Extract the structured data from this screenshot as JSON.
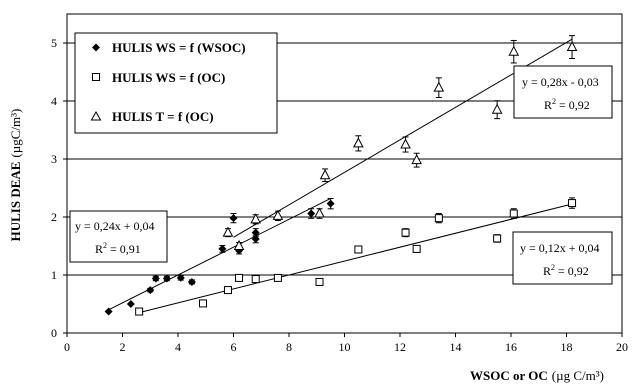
{
  "chart_data": {
    "type": "scatter",
    "xlabel": "WSOC or OC",
    "xunit": "(µg C/m³)",
    "ylabel": "HULIS DEAE",
    "yunit": "(µgC/m³)",
    "xlim": [
      0,
      20
    ],
    "ylim": [
      0,
      5.5
    ],
    "xticks": [
      0,
      2,
      4,
      6,
      8,
      10,
      12,
      14,
      16,
      18,
      20
    ],
    "yticks": [
      0,
      1,
      2,
      3,
      4,
      5
    ],
    "grid": "horizontal",
    "legend_position": "top-left",
    "series": [
      {
        "name": "HULIS WS = f (WSOC)",
        "marker": "filled-diamond",
        "color": "#000000",
        "points": [
          {
            "x": 1.5,
            "y": 0.37
          },
          {
            "x": 2.3,
            "y": 0.5
          },
          {
            "x": 3.0,
            "y": 0.74
          },
          {
            "x": 3.2,
            "y": 0.94
          },
          {
            "x": 3.6,
            "y": 0.94
          },
          {
            "x": 4.1,
            "y": 0.95
          },
          {
            "x": 4.5,
            "y": 0.88
          },
          {
            "x": 5.6,
            "y": 1.45
          },
          {
            "x": 6.0,
            "y": 1.98
          },
          {
            "x": 6.2,
            "y": 1.42
          },
          {
            "x": 6.8,
            "y": 1.62
          },
          {
            "x": 6.8,
            "y": 1.73
          },
          {
            "x": 8.8,
            "y": 2.06
          },
          {
            "x": 9.5,
            "y": 2.23
          }
        ],
        "fit": {
          "x_range": [
            1.5,
            9.5
          ],
          "slope": 0.24,
          "intercept": 0.04
        }
      },
      {
        "name": "HULIS WS = f (OC)",
        "marker": "open-square",
        "color": "#000000",
        "points": [
          {
            "x": 2.6,
            "y": 0.37
          },
          {
            "x": 4.9,
            "y": 0.51
          },
          {
            "x": 5.8,
            "y": 0.74
          },
          {
            "x": 6.2,
            "y": 0.95
          },
          {
            "x": 6.8,
            "y": 0.93
          },
          {
            "x": 7.6,
            "y": 0.95
          },
          {
            "x": 9.1,
            "y": 0.88
          },
          {
            "x": 10.5,
            "y": 1.44
          },
          {
            "x": 12.2,
            "y": 1.73
          },
          {
            "x": 12.6,
            "y": 1.45
          },
          {
            "x": 13.4,
            "y": 1.98
          },
          {
            "x": 15.5,
            "y": 1.63
          },
          {
            "x": 16.1,
            "y": 2.06
          },
          {
            "x": 18.2,
            "y": 2.24
          }
        ],
        "fit": {
          "x_range": [
            2.6,
            18.2
          ],
          "slope": 0.12,
          "intercept": 0.04
        }
      },
      {
        "name": "HULIS T = f (OC)",
        "marker": "open-triangle",
        "color": "#000000",
        "points": [
          {
            "x": 5.8,
            "y": 1.73
          },
          {
            "x": 6.2,
            "y": 1.5
          },
          {
            "x": 6.8,
            "y": 1.96
          },
          {
            "x": 7.6,
            "y": 2.02
          },
          {
            "x": 9.1,
            "y": 2.06
          },
          {
            "x": 9.3,
            "y": 2.72
          },
          {
            "x": 10.5,
            "y": 3.27
          },
          {
            "x": 12.2,
            "y": 3.25
          },
          {
            "x": 12.6,
            "y": 2.98
          },
          {
            "x": 13.4,
            "y": 4.23
          },
          {
            "x": 15.5,
            "y": 3.85
          },
          {
            "x": 16.1,
            "y": 4.85
          },
          {
            "x": 18.2,
            "y": 4.93
          }
        ],
        "fit": {
          "x_range": [
            6.0,
            18.2
          ],
          "slope": 0.28,
          "intercept": -0.03
        }
      }
    ],
    "equations": [
      {
        "series": "HULIS T = f (OC)",
        "line1": "y = 0,28x - 0,03",
        "r2_prefix": "R",
        "r2_sup": "2",
        "r2_value": " = 0,92"
      },
      {
        "series": "HULIS WS = f (WSOC)",
        "line1": "y = 0,24x + 0,04",
        "r2_prefix": "R",
        "r2_sup": "2",
        "r2_value": " = 0,91"
      },
      {
        "series": "HULIS WS = f (OC)",
        "line1": "y = 0,12x + 0,04",
        "r2_prefix": "R",
        "r2_sup": "2",
        "r2_value": " = 0,92"
      }
    ]
  }
}
